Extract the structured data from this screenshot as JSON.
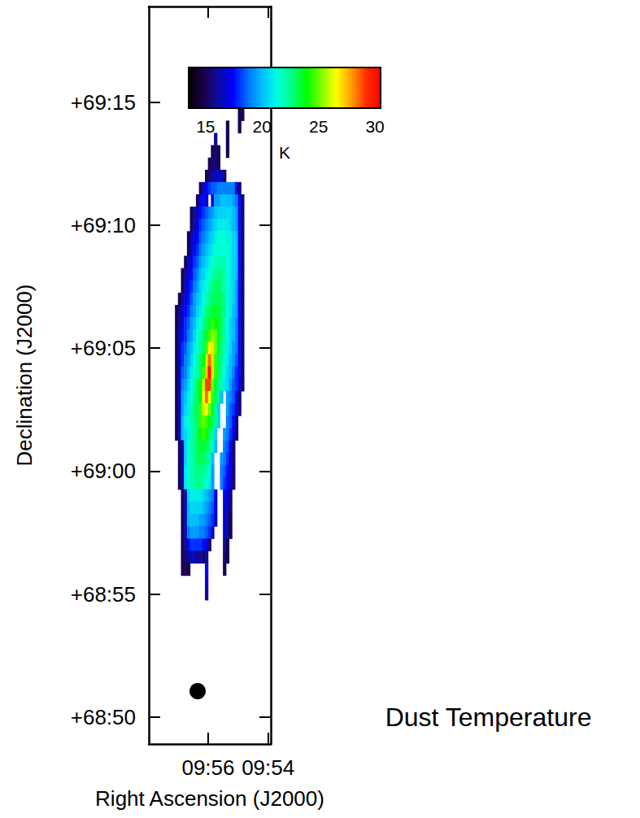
{
  "chart_data": {
    "type": "heatmap",
    "title": "Dust Temperature",
    "xlabel": "Right Ascension (J2000)",
    "ylabel": "Declination (J2000)",
    "xlim": [
      597.98,
      593.91
    ],
    "ylim": [
      4128.9,
      4158.9
    ],
    "xticks": [
      {
        "value": 596,
        "label": "09:56"
      },
      {
        "value": 594,
        "label": "09:54"
      }
    ],
    "yticks": [
      {
        "value": 4130,
        "label": "+68:50"
      },
      {
        "value": 4135,
        "label": "+68:55"
      },
      {
        "value": 4140,
        "label": "+69:00"
      },
      {
        "value": 4145,
        "label": "+69:05"
      },
      {
        "value": 4150,
        "label": "+69:10"
      },
      {
        "value": 4155,
        "label": "+69:15"
      }
    ],
    "grid": false,
    "colorbar_lim": [
      13.5,
      30.5
    ],
    "colorbar_ticks": [
      15,
      20,
      25,
      30
    ],
    "colorbar_label": "K",
    "x": [
      597.05,
      596.95,
      596.85,
      596.75,
      596.65,
      596.55,
      596.45,
      596.35,
      596.25,
      596.15,
      596.05,
      595.95,
      595.85,
      595.75,
      595.65,
      595.55,
      595.45,
      595.35,
      595.25,
      595.15,
      595.05,
      594.95,
      594.85,
      594.75
    ],
    "y": [
      4154.5,
      4154.0,
      4153.5,
      4153.0,
      4152.5,
      4152.0,
      4151.5,
      4151.0,
      4150.5,
      4150.0,
      4149.5,
      4149.0,
      4148.5,
      4148.0,
      4147.5,
      4147.0,
      4146.5,
      4146.0,
      4145.5,
      4145.0,
      4144.5,
      4144.0,
      4143.5,
      4143.0,
      4142.5,
      4142.0,
      4141.5,
      4141.0,
      4140.5,
      4140.0,
      4139.5,
      4139.0,
      4138.5,
      4138.0,
      4137.5,
      4137.0,
      4136.5,
      4136.0,
      4135.5,
      4135.0
    ],
    "values": [
      [
        null,
        null,
        null,
        null,
        null,
        null,
        null,
        null,
        null,
        null,
        null,
        null,
        null,
        null,
        null,
        null,
        null,
        null,
        null,
        null,
        null,
        15,
        15,
        null
      ],
      [
        null,
        null,
        null,
        null,
        null,
        null,
        null,
        null,
        null,
        null,
        null,
        null,
        null,
        null,
        null,
        null,
        null,
        15,
        null,
        null,
        null,
        15,
        null,
        null
      ],
      [
        null,
        null,
        null,
        null,
        null,
        null,
        null,
        null,
        null,
        null,
        null,
        null,
        null,
        16,
        null,
        null,
        null,
        15,
        null,
        null,
        null,
        null,
        null,
        null
      ],
      [
        null,
        null,
        null,
        null,
        null,
        null,
        null,
        null,
        null,
        null,
        null,
        null,
        15,
        15.5,
        15,
        null,
        null,
        15,
        null,
        null,
        null,
        null,
        null,
        null
      ],
      [
        null,
        null,
        null,
        null,
        null,
        null,
        null,
        null,
        null,
        null,
        null,
        15,
        15.5,
        15.5,
        15,
        null,
        null,
        null,
        null,
        null,
        null,
        null,
        null,
        null
      ],
      [
        null,
        null,
        null,
        null,
        null,
        null,
        null,
        null,
        null,
        null,
        15,
        15.5,
        16,
        16.5,
        17,
        16.5,
        15.5,
        null,
        null,
        null,
        null,
        null,
        null,
        null
      ],
      [
        null,
        null,
        null,
        null,
        null,
        null,
        null,
        null,
        15,
        16.5,
        17.5,
        18,
        18.5,
        18.5,
        19,
        19,
        19,
        19,
        19,
        19,
        17.5,
        15.5,
        null,
        null
      ],
      [
        null,
        null,
        null,
        null,
        null,
        null,
        null,
        15,
        17,
        17.5,
        16.5,
        null,
        17,
        19.5,
        19.5,
        20,
        20,
        20,
        20,
        19.5,
        19,
        17.5,
        15.5,
        null
      ],
      [
        null,
        null,
        null,
        null,
        null,
        15,
        16,
        16.5,
        17.5,
        18,
        18.5,
        19,
        19.5,
        20,
        20.5,
        20.5,
        20.5,
        20.5,
        20.5,
        20,
        19.5,
        17.5,
        15.5,
        null
      ],
      [
        null,
        null,
        null,
        null,
        null,
        15,
        16.5,
        17,
        18,
        18.5,
        19,
        19.5,
        20,
        20.5,
        21,
        21,
        21,
        21,
        20.5,
        20,
        19.5,
        17.5,
        15.5,
        null
      ],
      [
        null,
        null,
        null,
        null,
        15,
        16.5,
        17,
        17.5,
        18.5,
        19,
        19.5,
        20,
        20.5,
        21,
        21.5,
        21.5,
        21.5,
        21,
        21,
        20.5,
        20,
        17.5,
        15.5,
        null
      ],
      [
        null,
        null,
        null,
        null,
        15,
        16.5,
        17.5,
        18,
        19,
        19.5,
        20,
        20.5,
        21,
        21.5,
        21.5,
        21.5,
        21.5,
        21.5,
        21,
        20.5,
        20,
        17.5,
        15.5,
        null
      ],
      [
        null,
        null,
        null,
        15,
        16.5,
        17,
        18,
        18.5,
        19.5,
        20,
        20.5,
        21,
        21.5,
        22,
        22,
        22,
        22,
        21.5,
        21,
        20.5,
        20,
        17.5,
        15.5,
        null
      ],
      [
        null,
        null,
        15,
        16,
        17,
        17.5,
        18.5,
        19,
        20,
        20.5,
        21,
        21.5,
        22,
        22.5,
        22.5,
        22.5,
        22,
        21.5,
        21,
        20.5,
        20,
        17.5,
        15.5,
        null
      ],
      [
        null,
        null,
        15,
        16.5,
        17.5,
        18,
        19,
        19.5,
        20.5,
        21,
        21.5,
        22,
        22.5,
        23,
        23,
        22.5,
        22,
        21.5,
        21,
        20.5,
        19.5,
        17.5,
        15.5,
        null
      ],
      [
        null,
        15,
        16,
        17,
        17.5,
        18.5,
        19.5,
        20,
        20.5,
        21.5,
        22,
        22.5,
        23,
        23,
        23,
        23,
        22.5,
        21.5,
        21,
        20.5,
        19.5,
        17.5,
        15.5,
        null
      ],
      [
        15,
        16,
        16.5,
        17.5,
        18,
        19,
        19.5,
        20.5,
        21,
        22,
        22.5,
        23,
        23.5,
        23.5,
        23.5,
        23,
        22.5,
        21.5,
        21,
        20,
        19.5,
        17.5,
        15.5,
        null
      ],
      [
        15,
        16,
        17,
        18,
        18.5,
        19.5,
        20,
        21,
        21.5,
        22.5,
        23,
        23.5,
        24.5,
        24,
        23.5,
        23,
        22,
        21.5,
        20.5,
        20,
        19,
        17.5,
        15.5,
        null
      ],
      [
        15,
        16.5,
        17.5,
        18,
        19,
        19.5,
        20.5,
        21.5,
        22,
        23,
        23.5,
        24.5,
        25.5,
        25,
        23.5,
        23,
        22,
        21.5,
        20.5,
        20,
        19,
        17.5,
        15.5,
        null
      ],
      [
        15,
        16.5,
        18,
        18.5,
        19.5,
        20,
        21,
        21.5,
        22.5,
        23,
        24.5,
        26.5,
        27,
        25,
        23.5,
        22.5,
        22,
        21,
        20.5,
        19.5,
        19,
        17.5,
        15.5,
        null
      ],
      [
        15,
        16.5,
        18,
        19,
        19.5,
        20.5,
        21.5,
        22,
        23,
        24,
        26,
        28.5,
        27,
        24.5,
        23,
        22.5,
        21.5,
        21,
        20,
        19.5,
        18.5,
        17.5,
        15.5,
        null
      ],
      [
        15,
        16.5,
        18.5,
        19,
        20,
        21,
        21.5,
        22,
        23,
        24.5,
        27.5,
        30,
        27,
        24.5,
        23,
        22,
        21.5,
        20.5,
        20,
        19,
        18,
        17.5,
        15.5,
        null
      ],
      [
        15,
        16.5,
        19,
        19.5,
        20.5,
        21.5,
        22,
        23,
        24,
        26,
        29,
        29,
        25,
        23.5,
        22.5,
        22,
        21,
        20.5,
        19.5,
        18.5,
        18,
        17,
        15.5,
        null
      ],
      [
        15,
        16.5,
        19.5,
        20,
        21,
        21.5,
        22.5,
        23,
        24,
        26.5,
        28.5,
        26.5,
        24.5,
        23,
        22.5,
        20,
        null,
        19.5,
        19,
        18.5,
        17.5,
        15.5,
        null,
        null
      ],
      [
        15,
        16.5,
        19.5,
        20.5,
        21,
        22,
        23,
        23,
        24.5,
        26,
        26.5,
        25,
        23.5,
        22.5,
        20.5,
        null,
        null,
        19.5,
        18.5,
        18,
        17,
        15.5,
        null,
        null
      ],
      [
        15,
        16.5,
        20,
        21,
        21.5,
        22,
        22.5,
        23,
        24.5,
        25,
        24.5,
        24,
        23,
        22.5,
        20.5,
        null,
        null,
        19,
        18.5,
        17.5,
        15.5,
        null,
        null,
        null
      ],
      [
        15,
        16.5,
        20,
        20.5,
        21,
        22,
        22.5,
        23,
        24,
        24.5,
        24,
        23,
        22.5,
        20.5,
        null,
        null,
        19.5,
        19,
        18,
        17,
        15.5,
        null,
        null,
        null
      ],
      [
        null,
        15,
        16.5,
        20.5,
        21.5,
        22,
        22.5,
        23,
        23.5,
        23.5,
        23,
        22.5,
        22,
        20,
        null,
        null,
        19,
        18.5,
        17.5,
        15.5,
        null,
        null,
        null,
        null
      ],
      [
        null,
        15,
        16.5,
        20.5,
        21.5,
        22,
        22.5,
        23,
        23,
        23,
        22.5,
        22,
        20,
        null,
        null,
        19.5,
        19,
        18,
        17,
        15.5,
        null,
        null,
        null,
        null
      ],
      [
        null,
        15,
        16.5,
        21,
        21.5,
        22,
        22.5,
        22.5,
        22.5,
        22.5,
        22,
        21.5,
        19.5,
        null,
        null,
        19,
        18.5,
        17.5,
        17,
        15.5,
        null,
        null,
        null,
        null
      ],
      [
        null,
        15,
        16.5,
        21,
        21.5,
        22,
        22,
        22.5,
        22.5,
        22,
        21.5,
        21,
        19.5,
        null,
        null,
        19,
        18,
        17.5,
        16.5,
        15.5,
        null,
        null,
        null,
        null
      ],
      [
        null,
        null,
        15,
        16.5,
        20.5,
        21,
        21,
        21,
        21,
        20.5,
        20,
        19.5,
        19,
        17,
        null,
        null,
        17.5,
        17,
        15.5,
        null,
        null,
        null,
        null,
        null
      ],
      [
        null,
        null,
        15,
        16.5,
        20,
        20.5,
        20.5,
        20.5,
        20.5,
        20,
        19.5,
        19,
        18.5,
        17,
        null,
        null,
        17,
        16.5,
        15.5,
        null,
        null,
        null,
        null,
        null
      ],
      [
        null,
        null,
        15,
        16.5,
        20,
        20,
        20,
        20,
        19.5,
        19.5,
        19,
        18.5,
        18,
        16.5,
        null,
        null,
        17,
        16,
        15,
        null,
        null,
        null,
        null,
        null
      ],
      [
        null,
        null,
        15,
        16.5,
        19,
        19.5,
        19.5,
        19.5,
        19,
        19,
        18.5,
        18,
        16.5,
        null,
        null,
        null,
        17,
        16,
        15,
        null,
        null,
        null,
        null,
        null
      ],
      [
        null,
        null,
        15,
        16,
        17.5,
        18,
        18,
        18,
        18,
        17.5,
        17,
        15.5,
        null,
        null,
        null,
        null,
        16,
        15,
        null,
        null,
        null,
        null,
        null,
        null
      ],
      [
        null,
        null,
        15,
        15.5,
        16,
        16.5,
        16.5,
        16,
        16,
        15.5,
        16,
        null,
        null,
        null,
        null,
        null,
        15.5,
        15,
        null,
        null,
        null,
        null,
        null,
        null
      ],
      [
        null,
        null,
        15,
        15,
        15,
        null,
        null,
        null,
        null,
        null,
        17.5,
        null,
        null,
        null,
        null,
        null,
        15,
        null,
        null,
        null,
        null,
        null,
        null,
        null
      ],
      [
        null,
        null,
        null,
        null,
        null,
        null,
        null,
        null,
        null,
        null,
        17,
        null,
        null,
        null,
        null,
        null,
        null,
        null,
        null,
        null,
        null,
        null,
        null,
        null
      ],
      [
        null,
        null,
        null,
        null,
        null,
        null,
        null,
        null,
        null,
        null,
        16,
        null,
        null,
        null,
        null,
        null,
        null,
        null,
        null,
        null,
        null,
        null,
        null,
        null
      ]
    ]
  }
}
